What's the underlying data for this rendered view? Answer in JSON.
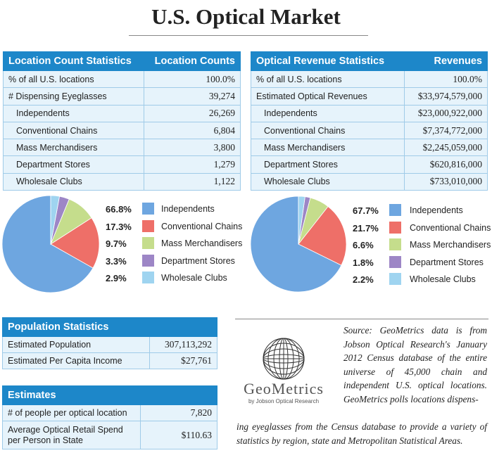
{
  "page": {
    "title": "U.S. Optical Market"
  },
  "location_table": {
    "header": [
      "Location Count Statistics",
      "Location Counts"
    ],
    "rows": [
      {
        "label": "% of all U.S. locations",
        "value": "100.0%"
      },
      {
        "label": "# Dispensing Eyeglasses",
        "value": "39,274"
      },
      {
        "label": "Independents",
        "value": "26,269"
      },
      {
        "label": "Conventional Chains",
        "value": "6,804"
      },
      {
        "label": "Mass Merchandisers",
        "value": "3,800"
      },
      {
        "label": "Department Stores",
        "value": "1,279"
      },
      {
        "label": "Wholesale Clubs",
        "value": "1,122"
      }
    ]
  },
  "revenue_table": {
    "header": [
      "Optical Revenue Statistics",
      "Revenues"
    ],
    "rows": [
      {
        "label": "% of all U.S. locations",
        "value": "100.0%"
      },
      {
        "label": "Estimated Optical Revenues",
        "value": "$33,974,579,000"
      },
      {
        "label": "Independents",
        "value": "$23,000,922,000"
      },
      {
        "label": "Conventional Chains",
        "value": "$7,374,772,000"
      },
      {
        "label": "Mass Merchandisers",
        "value": "$2,245,059,000"
      },
      {
        "label": "Department Stores",
        "value": "$620,816,000"
      },
      {
        "label": "Wholesale Clubs",
        "value": "$733,010,000"
      }
    ]
  },
  "chart_data": [
    {
      "type": "pie",
      "categories": [
        "Independents",
        "Conventional Chains",
        "Mass Merchandisers",
        "Department Stores",
        "Wholesale Clubs"
      ],
      "values": [
        66.8,
        17.3,
        9.7,
        3.3,
        2.9
      ],
      "labels": [
        "66.8%",
        "17.3%",
        "9.7%",
        "3.3%",
        "2.9%"
      ],
      "colors": [
        "#6ea6e0",
        "#ee6f68",
        "#c5dd8c",
        "#9d86c6",
        "#9fd4f0"
      ],
      "legend_position": "right"
    },
    {
      "type": "pie",
      "categories": [
        "Independents",
        "Conventional Chains",
        "Mass Merchandisers",
        "Department Stores",
        "Wholesale Clubs"
      ],
      "values": [
        67.7,
        21.7,
        6.6,
        1.8,
        2.2
      ],
      "labels": [
        "67.7%",
        "21.7%",
        "6.6%",
        "1.8%",
        "2.2%"
      ],
      "colors": [
        "#6ea6e0",
        "#ee6f68",
        "#c5dd8c",
        "#9d86c6",
        "#9fd4f0"
      ],
      "legend_position": "right"
    }
  ],
  "population_table": {
    "header": "Population Statistics",
    "rows": [
      {
        "label": "Estimated Population",
        "value": "307,113,292"
      },
      {
        "label": "Estimated Per Capita Income",
        "value": "$27,761"
      }
    ]
  },
  "estimates_table": {
    "header": "Estimates",
    "rows": [
      {
        "label": "# of people per optical location",
        "value": "7,820"
      },
      {
        "label": "Average Optical Retail Spend per Person in State",
        "value": "$110.63"
      }
    ]
  },
  "logo": {
    "name": "GeoMetrics",
    "subtitle": "by Jobson Optical Research"
  },
  "source": {
    "text_main": "Source: GeoMetrics data is from Jobson Optical Research's January 2012 Census database of the entire universe of 45,000 chain and independent U.S. optical locations. GeoMetrics polls locations dispens-",
    "text_tail": "ing eyeglasses from the Census database to provide a variety of statistics by region, state and Metropolitan Statistical Areas."
  }
}
